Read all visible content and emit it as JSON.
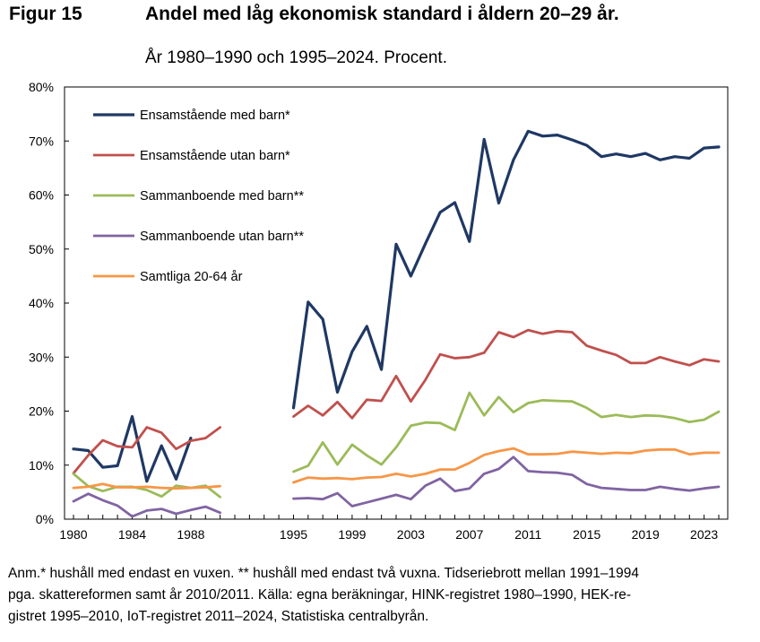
{
  "figure": {
    "label": "Figur 15",
    "title": "Andel med låg ekonomisk standard i åldern 20–29 år.",
    "subtitle": "År 1980–1990 och 1995–2024. Procent."
  },
  "note": {
    "lines": [
      "Anm.* hushåll med endast en vuxen. ** hushåll med endast två vuxna. Tidseriebrott mellan 1991–1994",
      "pga. skattereformen samt år 2010/2011. Källa: egna beräkningar, HINK-registret 1980–1990, HEK-re-",
      "gistret 1995–2010, IoT-registret 2011–2024, Statistiska centralbyrån."
    ]
  },
  "chart_data": {
    "type": "line",
    "title": "Andel med låg ekonomisk standard i åldern 20–29 år.",
    "subtitle": "År 1980–1990 och 1995–2024. Procent.",
    "xlabel": "",
    "ylabel": "",
    "ylim": [
      0,
      80
    ],
    "xlim": [
      1980,
      2024
    ],
    "y_ticks": [
      0,
      10,
      20,
      30,
      40,
      50,
      60,
      70,
      80
    ],
    "y_tick_suffix": "%",
    "x_ticks": [
      1980,
      1984,
      1988,
      1995,
      1999,
      2003,
      2007,
      2011,
      2015,
      2019,
      2023
    ],
    "grid": false,
    "legend_position": "top-left",
    "segments": [
      {
        "x": [
          1980,
          1981,
          1982,
          1983,
          1984,
          1985,
          1986,
          1987,
          1988,
          1989,
          1990,
          1991
        ]
      },
      {
        "x": [
          1995,
          1996,
          1997,
          1998,
          1999,
          2000,
          2001,
          2002,
          2003,
          2004,
          2005,
          2006,
          2007,
          2008,
          2009,
          2010,
          2011,
          2012,
          2013,
          2014,
          2015,
          2016,
          2017,
          2018,
          2019,
          2020,
          2021,
          2022,
          2023,
          2024
        ]
      }
    ],
    "series": [
      {
        "name": "Ensamstående med barn*",
        "color": "#1f3864",
        "values": [
          [
            13.0,
            12.7,
            9.6,
            9.9,
            19.0,
            7.0,
            13.6,
            7.4,
            15.0,
            null,
            null,
            null
          ],
          [
            20.6,
            40.2,
            37.0,
            23.5,
            31.0,
            35.7,
            27.7,
            50.9,
            45.0,
            51.0,
            56.8,
            58.6,
            51.4,
            70.3,
            58.5,
            66.5,
            71.8,
            70.9,
            71.1,
            70.2,
            69.2,
            67.1,
            67.6,
            67.1,
            67.7,
            66.5,
            67.1,
            66.8,
            68.7,
            68.9
          ]
        ]
      },
      {
        "name": "Ensamstående utan barn*",
        "color": "#c0504d",
        "values": [
          [
            8.5,
            11.8,
            14.6,
            13.5,
            13.3,
            17.0,
            16.0,
            13.0,
            14.5,
            15.0,
            17.0,
            null
          ],
          [
            19.0,
            21.0,
            19.2,
            21.7,
            18.7,
            22.1,
            21.9,
            26.5,
            21.8,
            25.8,
            30.5,
            29.8,
            30.0,
            30.8,
            34.6,
            33.7,
            35.0,
            34.3,
            34.8,
            34.6,
            32.1,
            31.2,
            30.4,
            28.9,
            28.9,
            30.0,
            29.2,
            28.5,
            29.6,
            29.2
          ]
        ]
      },
      {
        "name": "Sammanboende med barn**",
        "color": "#9bbb59",
        "values": [
          [
            8.4,
            6.1,
            5.2,
            6.0,
            6.0,
            5.4,
            4.2,
            6.2,
            5.8,
            6.2,
            4.1,
            null
          ],
          [
            8.8,
            9.9,
            14.2,
            10.1,
            13.8,
            11.8,
            10.1,
            13.3,
            17.3,
            17.9,
            17.8,
            16.5,
            23.4,
            19.2,
            22.6,
            19.8,
            21.5,
            22.0,
            21.9,
            21.8,
            20.6,
            18.9,
            19.3,
            18.9,
            19.2,
            19.1,
            18.7,
            18.0,
            18.4,
            19.9
          ]
        ]
      },
      {
        "name": "Sammanboende utan barn**",
        "color": "#8064a2",
        "values": [
          [
            3.3,
            4.7,
            3.5,
            2.5,
            0.5,
            1.6,
            1.9,
            1.0,
            1.7,
            2.3,
            1.2,
            null
          ],
          [
            3.8,
            3.9,
            3.7,
            4.8,
            2.4,
            3.1,
            3.8,
            4.5,
            3.7,
            6.2,
            7.5,
            5.2,
            5.7,
            8.4,
            9.3,
            11.5,
            8.9,
            8.7,
            8.6,
            8.2,
            6.5,
            5.8,
            5.6,
            5.4,
            5.4,
            6.0,
            5.6,
            5.3,
            5.7,
            6.0
          ]
        ]
      },
      {
        "name": "Samtliga 20-64 år",
        "color": "#f79646",
        "values": [
          [
            5.8,
            6.0,
            6.5,
            5.9,
            5.9,
            6.0,
            5.8,
            5.7,
            5.8,
            5.9,
            6.1,
            null
          ],
          [
            6.8,
            7.7,
            7.5,
            7.6,
            7.4,
            7.7,
            7.8,
            8.4,
            7.9,
            8.4,
            9.2,
            9.2,
            10.4,
            11.9,
            12.6,
            13.1,
            12.0,
            12.0,
            12.1,
            12.5,
            12.3,
            12.1,
            12.3,
            12.2,
            12.7,
            12.9,
            12.9,
            12.0,
            12.3,
            12.3
          ]
        ]
      }
    ]
  }
}
